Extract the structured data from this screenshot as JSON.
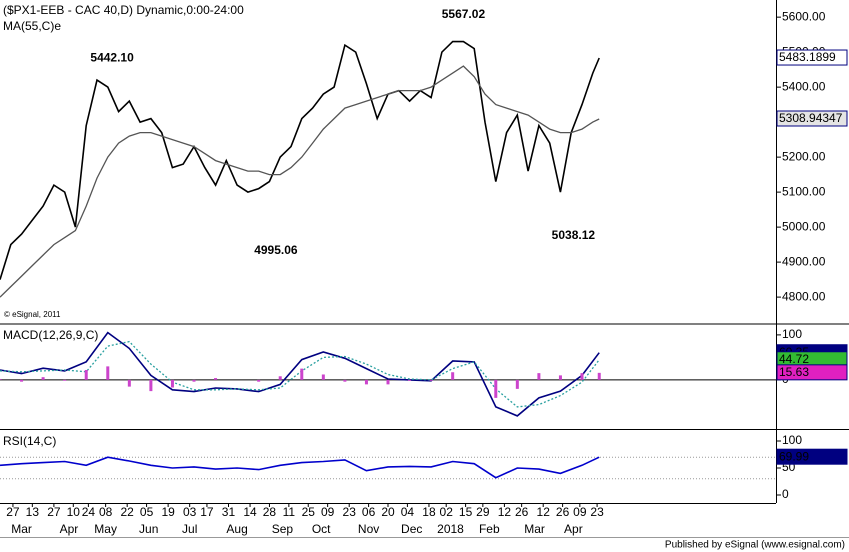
{
  "chart_data": [
    {
      "type": "line",
      "title": "($PX1-EEB - CAC 40,D) Dynamic,0:00-24:00",
      "watermark": "© eSignal, 2011",
      "xlim": [
        0,
        360
      ],
      "ylim": [
        4726,
        5649
      ],
      "yticks": [
        {
          "value": 4800,
          "label": "4800.00"
        },
        {
          "value": 4900,
          "label": "4900.00"
        },
        {
          "value": 5000,
          "label": "5000.00"
        },
        {
          "value": 5100,
          "label": "5100.00"
        },
        {
          "value": 5200,
          "label": "5200.00"
        },
        {
          "value": 5300,
          "label": "5300.00"
        },
        {
          "value": 5400,
          "label": "5400.00"
        },
        {
          "value": 5500,
          "label": "5500.00"
        },
        {
          "value": 5600,
          "label": "5600.00"
        }
      ],
      "x": [
        0,
        5,
        10,
        15,
        20,
        25,
        30,
        35,
        40,
        45,
        50,
        55,
        60,
        65,
        70,
        75,
        80,
        85,
        90,
        95,
        100,
        105,
        110,
        115,
        120,
        125,
        130,
        135,
        140,
        145,
        150,
        155,
        160,
        165,
        170,
        175,
        180,
        185,
        190,
        195,
        200,
        205,
        210,
        215,
        220,
        225,
        230,
        235,
        240,
        245,
        250,
        255,
        260,
        265,
        270,
        275,
        278
      ],
      "series": [
        {
          "color": "#000000",
          "box": "#ffffff",
          "box_text": "#000000",
          "values": [
            4850,
            4950,
            4980,
            5020,
            5060,
            5120,
            5100,
            5000,
            5290,
            5420,
            5400,
            5330,
            5360,
            5300,
            5310,
            5270,
            5170,
            5180,
            5230,
            5170,
            5120,
            5190,
            5120,
            5100,
            5110,
            5130,
            5200,
            5230,
            5310,
            5340,
            5380,
            5400,
            5520,
            5500,
            5410,
            5310,
            5380,
            5390,
            5360,
            5390,
            5370,
            5500,
            5530,
            5530,
            5510,
            5300,
            5130,
            5270,
            5320,
            5160,
            5290,
            5240,
            5100,
            5270,
            5350,
            5440,
            5483.1899
          ]
        },
        {
          "name": "MA(55,C)e",
          "color": "#555555",
          "box": "#e4e4e4",
          "box_text": "#333333",
          "values": [
            4800,
            4830,
            4860,
            4890,
            4920,
            4950,
            4970,
            4990,
            5060,
            5140,
            5200,
            5240,
            5260,
            5270,
            5270,
            5260,
            5250,
            5240,
            5230,
            5210,
            5190,
            5180,
            5170,
            5160,
            5160,
            5150,
            5150,
            5170,
            5200,
            5240,
            5280,
            5310,
            5340,
            5350,
            5360,
            5370,
            5380,
            5390,
            5390,
            5390,
            5400,
            5420,
            5440,
            5460,
            5430,
            5380,
            5350,
            5340,
            5330,
            5320,
            5300,
            5280,
            5270,
            5270,
            5280,
            5300,
            5308.94347
          ]
        }
      ],
      "annotations": [
        {
          "label": "5442.10",
          "value": 5442.1,
          "x": 52,
          "position": "above"
        },
        {
          "label": "4995.06",
          "value": 4995.06,
          "x": 128,
          "position": "below"
        },
        {
          "label": "5567.02",
          "value": 5567.02,
          "x": 215,
          "position": "above"
        },
        {
          "label": "5038.12",
          "value": 5038.12,
          "x": 266,
          "position": "below"
        }
      ]
    },
    {
      "type": "line",
      "xlim": [
        0,
        360
      ],
      "ylim": [
        -107,
        122
      ],
      "yticks": [
        0,
        100
      ],
      "zero_line": true,
      "x": [
        0,
        10,
        20,
        30,
        40,
        50,
        60,
        70,
        80,
        90,
        100,
        110,
        120,
        130,
        140,
        150,
        160,
        170,
        180,
        190,
        200,
        210,
        220,
        230,
        240,
        250,
        260,
        270,
        278
      ],
      "series": [
        {
          "name": "MACD(12,26,9,C)",
          "color": "#000080",
          "box": "#000080",
          "box_text": "#ffffff",
          "values": [
            22,
            14,
            26,
            20,
            40,
            105,
            70,
            10,
            -22,
            -26,
            -18,
            -20,
            -26,
            -10,
            45,
            62,
            48,
            25,
            2,
            0,
            -2,
            42,
            40,
            -60,
            -80,
            -40,
            -25,
            10,
            60.35
          ]
        },
        {
          "color": "#2aa0a0",
          "dash": true,
          "box": "#33bb33",
          "box_text": "#ffffff",
          "values": [
            20,
            18,
            20,
            22,
            18,
            75,
            85,
            35,
            -5,
            -22,
            -22,
            -20,
            -22,
            -18,
            20,
            50,
            52,
            35,
            12,
            2,
            0,
            25,
            40,
            -20,
            -60,
            -55,
            -35,
            -5,
            44.72
          ]
        },
        {
          "color": "#cc44cc",
          "style": "histogram",
          "box": "#e020c0",
          "box_text": "#ffffff",
          "values": [
            2,
            -4,
            6,
            -2,
            22,
            30,
            -15,
            -25,
            -17,
            -4,
            4,
            0,
            -4,
            8,
            25,
            12,
            -4,
            -10,
            -10,
            -2,
            -2,
            17,
            0,
            -40,
            -20,
            15,
            10,
            15,
            15.63
          ]
        }
      ]
    },
    {
      "type": "line",
      "xlim": [
        0,
        360
      ],
      "ylim": [
        -14.8,
        118.5
      ],
      "yticks": [
        0,
        50,
        100
      ],
      "levels": [
        30,
        70
      ],
      "x": [
        0,
        10,
        20,
        30,
        40,
        50,
        60,
        70,
        80,
        90,
        100,
        110,
        120,
        130,
        140,
        150,
        160,
        170,
        180,
        190,
        200,
        210,
        220,
        230,
        240,
        250,
        260,
        270,
        278
      ],
      "series": [
        {
          "name": "RSI(14,C)",
          "color": "#0000cc",
          "box": "#000080",
          "box_text": "#ffffff",
          "values": [
            55,
            58,
            60,
            62,
            55,
            70,
            63,
            55,
            50,
            52,
            48,
            50,
            47,
            55,
            60,
            62,
            65,
            45,
            52,
            53,
            52,
            62,
            58,
            32,
            50,
            48,
            40,
            55,
            69.99
          ]
        }
      ],
      "xticks": [
        {
          "value": 6,
          "label": "27"
        },
        {
          "value": 15,
          "label": "13"
        },
        {
          "value": 25,
          "label": "27"
        },
        {
          "value": 34,
          "label": "10"
        },
        {
          "value": 41,
          "label": "24"
        },
        {
          "value": 49,
          "label": "08"
        },
        {
          "value": 59,
          "label": "22"
        },
        {
          "value": 68,
          "label": "05"
        },
        {
          "value": 78,
          "label": "19"
        },
        {
          "value": 88,
          "label": "03"
        },
        {
          "value": 96,
          "label": "17"
        },
        {
          "value": 106,
          "label": "31"
        },
        {
          "value": 116,
          "label": "14"
        },
        {
          "value": 125,
          "label": "28"
        },
        {
          "value": 134,
          "label": "11"
        },
        {
          "value": 143,
          "label": "25"
        },
        {
          "value": 152,
          "label": "09"
        },
        {
          "value": 162,
          "label": "23"
        },
        {
          "value": 171,
          "label": "06"
        },
        {
          "value": 180,
          "label": "20"
        },
        {
          "value": 189,
          "label": "04"
        },
        {
          "value": 199,
          "label": "18"
        },
        {
          "value": 207,
          "label": "02"
        },
        {
          "value": 216,
          "label": "15"
        },
        {
          "value": 224,
          "label": "29"
        },
        {
          "value": 234,
          "label": "12"
        },
        {
          "value": 242,
          "label": "26"
        },
        {
          "value": 252,
          "label": "12"
        },
        {
          "value": 261,
          "label": "26"
        },
        {
          "value": 269,
          "label": "09"
        },
        {
          "value": 277,
          "label": "23"
        }
      ],
      "xticks_major": [
        {
          "value": 10,
          "label": "Mar"
        },
        {
          "value": 32,
          "label": "Apr"
        },
        {
          "value": 49,
          "label": "May"
        },
        {
          "value": 69,
          "label": "Jun"
        },
        {
          "value": 88,
          "label": "Jul"
        },
        {
          "value": 110,
          "label": "Aug"
        },
        {
          "value": 131,
          "label": "Sep"
        },
        {
          "value": 149,
          "label": "Oct"
        },
        {
          "value": 171,
          "label": "Nov"
        },
        {
          "value": 191,
          "label": "Dec"
        },
        {
          "value": 209,
          "label": "2018"
        },
        {
          "value": 227,
          "label": "Feb"
        },
        {
          "value": 248,
          "label": "Mar"
        },
        {
          "value": 266,
          "label": "Apr"
        }
      ]
    }
  ],
  "footer": "Published by eSignal (www.esignal.com)"
}
